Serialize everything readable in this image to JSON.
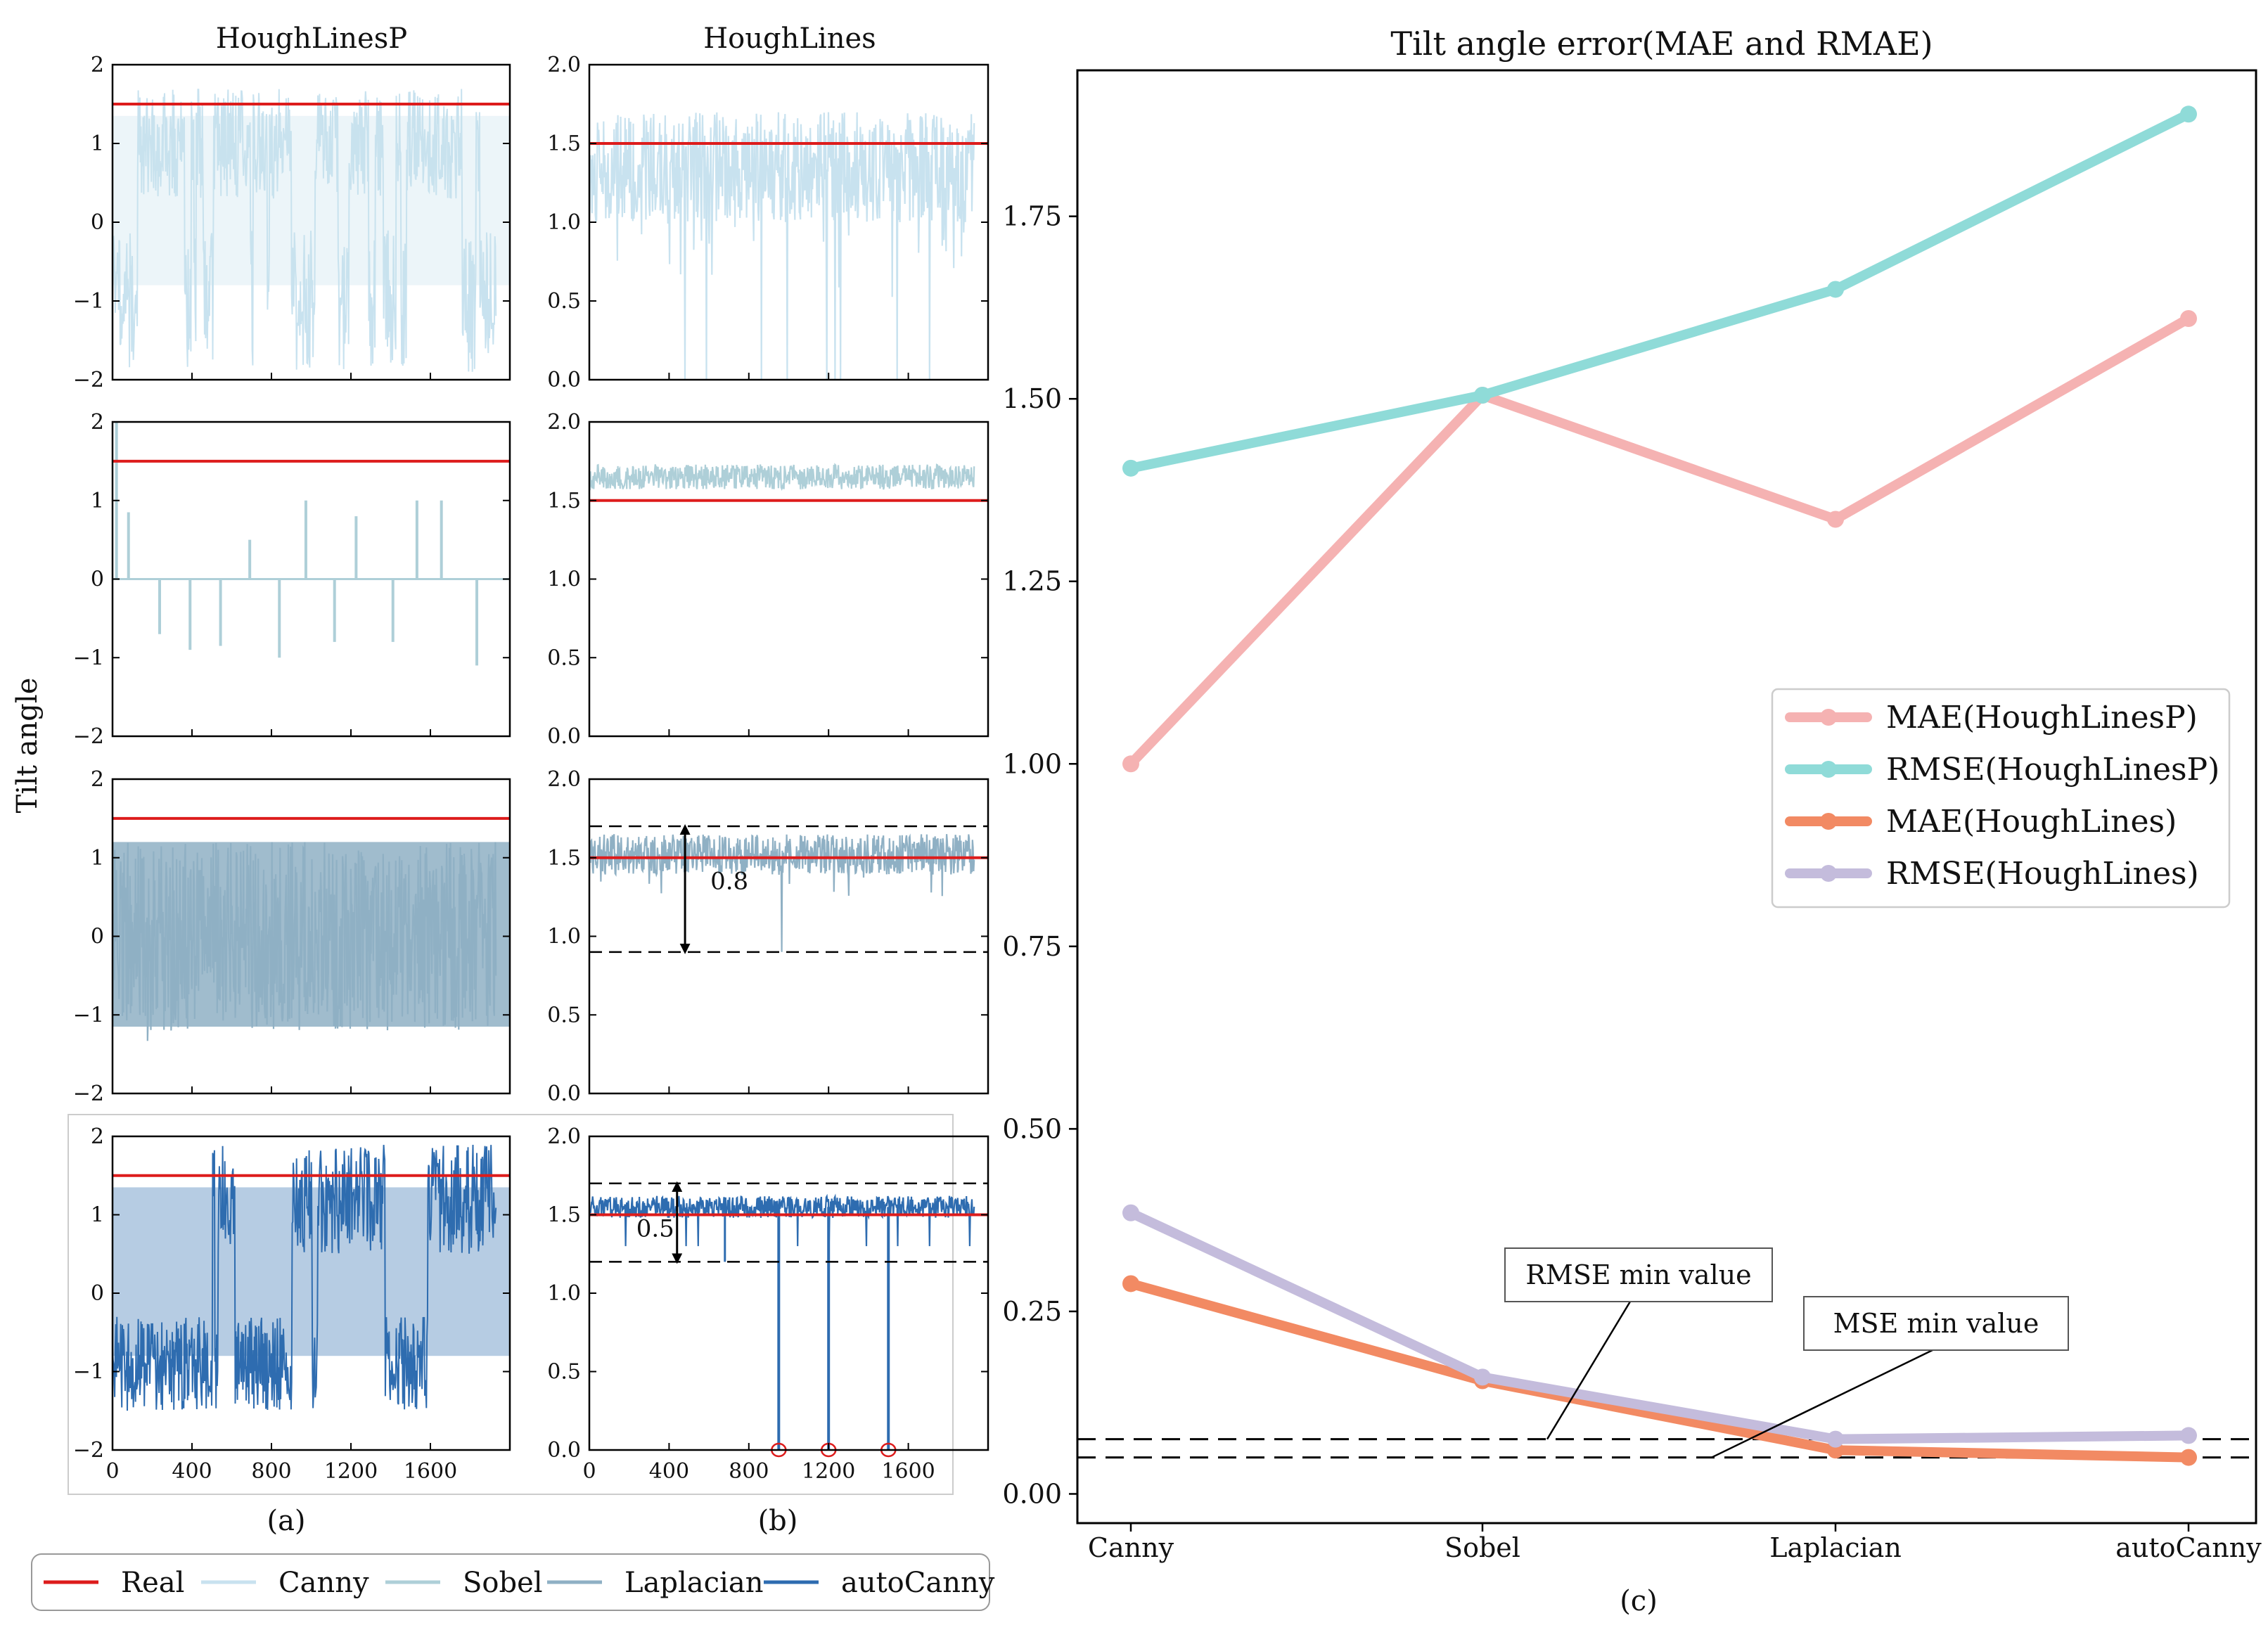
{
  "colors": {
    "real": "#dd1c1c",
    "canny": "#c8e2ef",
    "sobel": "#aecfd8",
    "laplacian": "#8fb0c4",
    "autocanny": "#2e6cb0",
    "mae_hlp": "#f5b2b2",
    "rmse_hlp": "#8fdbd8",
    "mae_hl": "#f28a63",
    "rmse_hl": "#c4bcdc"
  },
  "chart_data": [
    {
      "id": "a",
      "type": "line",
      "title": "HoughLinesP",
      "ylabel": "Tilt angle",
      "xticks": [
        "0",
        "400",
        "800",
        "1200",
        "1600"
      ],
      "yticks": [
        "2",
        "1",
        "0",
        "−1",
        "−2"
      ],
      "ylim": [
        -2,
        2
      ],
      "xlim": [
        0,
        2000
      ],
      "real_value": 1.5,
      "caption": "(a)",
      "rows": [
        {
          "series": "Canny",
          "range": [
            -2,
            2
          ],
          "mean": 0.9
        },
        {
          "series": "Sobel",
          "spikes": [
            0.85,
            -0.7,
            -0.9,
            -0.85,
            0.5,
            -1.0,
            1.0,
            -0.8,
            0.8,
            -0.8,
            1.0,
            1.0,
            -1.1
          ]
        },
        {
          "series": "Laplacian",
          "range": [
            -1.8,
            1.7
          ],
          "mean": 0.1
        },
        {
          "series": "autoCanny",
          "range": [
            -1.7,
            2
          ],
          "mean": 0.3
        }
      ]
    },
    {
      "id": "b",
      "type": "line",
      "title": "HoughLines",
      "xticks": [
        "0",
        "400",
        "800",
        "1200",
        "1600"
      ],
      "yticks": [
        "2.0",
        "1.5",
        "1.0",
        "0.5",
        "0.0"
      ],
      "ylim": [
        0,
        2
      ],
      "xlim": [
        0,
        2000
      ],
      "real_value": 1.5,
      "caption": "(b)",
      "rows": [
        {
          "series": "Canny",
          "range": [
            0,
            1.85
          ],
          "mean": 1.35
        },
        {
          "series": "Sobel",
          "range": [
            1.55,
            1.75
          ],
          "mean": 1.65
        },
        {
          "series": "Laplacian",
          "range": [
            0.9,
            1.7
          ],
          "mean": 1.52,
          "band": [
            0.9,
            1.7
          ],
          "band_label": "0.8"
        },
        {
          "series": "autoCanny",
          "range": [
            0,
            1.65
          ],
          "mean": 1.55,
          "band": [
            1.2,
            1.7
          ],
          "band_label": "0.5",
          "outliers_x": [
            950,
            1200,
            1500
          ]
        }
      ]
    },
    {
      "id": "c",
      "type": "line",
      "title": "Tilt angle error(MAE and RMAE)",
      "caption": "(c)",
      "categories": [
        "Canny",
        "Sobel",
        "Laplacian",
        "autoCanny"
      ],
      "ylim": [
        -0.04,
        1.95
      ],
      "yticks": [
        "0.00",
        "0.25",
        "0.50",
        "0.75",
        "1.00",
        "1.25",
        "1.50",
        "1.75"
      ],
      "series": [
        {
          "name": "MAE(HoughLinesP)",
          "values": [
            1.0,
            1.505,
            1.335,
            1.61
          ]
        },
        {
          "name": "RMSE(HoughLinesP)",
          "values": [
            1.405,
            1.505,
            1.65,
            1.89
          ]
        },
        {
          "name": "MAE(HoughLines)",
          "values": [
            0.288,
            0.155,
            0.06,
            0.05
          ]
        },
        {
          "name": "RMSE(HoughLines)",
          "values": [
            0.385,
            0.16,
            0.075,
            0.08
          ]
        }
      ],
      "hlines": [
        0.075,
        0.05
      ],
      "annotations": [
        "RMSE min value",
        "MSE min value"
      ]
    }
  ],
  "legend": {
    "items": [
      "Real",
      "Canny",
      "Sobel",
      "Laplacian",
      "autoCanny"
    ]
  }
}
